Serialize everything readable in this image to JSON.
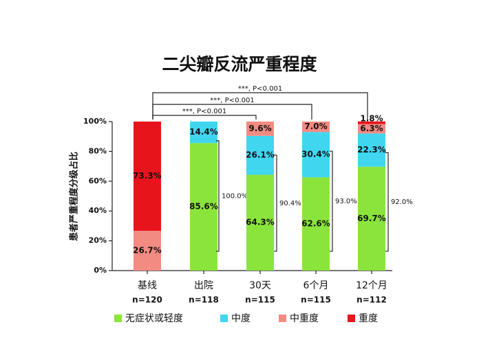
{
  "chart_data": {
    "type": "stacked_bar",
    "title": "二尖瓣反流严重程度",
    "y_label": "患者严重程度分级占比",
    "categories": [
      "基线",
      "出院",
      "30天",
      "6个月",
      "12个月"
    ],
    "category_notes": [
      "n=120",
      "n=118",
      "n=115",
      "n=115",
      "n=112"
    ],
    "series": [
      {
        "name": "无症状或轻度",
        "color": "#8be43c",
        "values": [
          null,
          85.6,
          64.3,
          62.6,
          69.7
        ],
        "value_labels": [
          null,
          "85.6%",
          "64.3%",
          "62.6%",
          "69.7%"
        ]
      },
      {
        "name": "中度",
        "color": "#40d6f0",
        "values": [
          null,
          14.4,
          26.1,
          30.4,
          22.3
        ],
        "value_labels": [
          null,
          "14.4%",
          "26.1%",
          "30.4%",
          "22.3%"
        ]
      },
      {
        "name": "中重度",
        "color": "#f28b82",
        "values": [
          26.7,
          null,
          9.6,
          7.0,
          6.3
        ],
        "value_labels": [
          "26.7%",
          null,
          "9.6%",
          "7.0%",
          "6.3%"
        ]
      },
      {
        "name": "重度",
        "color": "#e8141b",
        "values": [
          73.3,
          null,
          null,
          null,
          1.8
        ],
        "value_labels": [
          "73.3%",
          null,
          null,
          null,
          "1.8%"
        ]
      }
    ],
    "bracket_labels": [
      null,
      "100.0%",
      "90.4%",
      "93.0%",
      "92.0%"
    ],
    "significance_labels": [
      "***, P<0.001",
      "***, P<0.001",
      "***, P<0.001"
    ],
    "ylim": [
      0,
      100
    ],
    "yticks": [
      {
        "value": 0,
        "label": "0%"
      },
      {
        "value": 20,
        "label": "20%"
      },
      {
        "value": 40,
        "label": "40%"
      },
      {
        "value": 60,
        "label": "60%"
      },
      {
        "value": 80,
        "label": "80%"
      },
      {
        "value": 100,
        "label": "100%"
      }
    ]
  }
}
